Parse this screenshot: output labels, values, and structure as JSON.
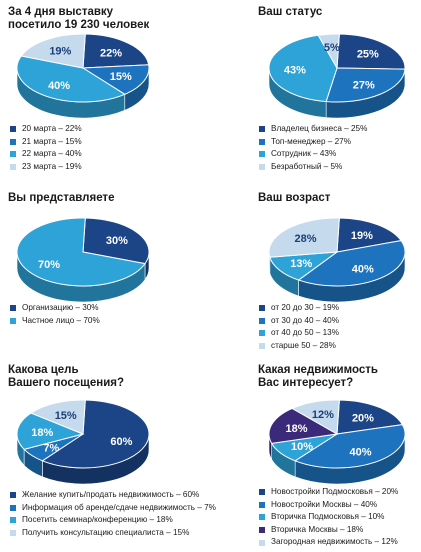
{
  "chart_data": [
    {
      "type": "pie",
      "title": "За 4 дня выставку\nпосетило 19 230 человек",
      "slices": [
        {
          "label": "20 марта – 22%",
          "value": 22,
          "value_label": "22%",
          "color": "#1c4587"
        },
        {
          "label": "21 марта – 15%",
          "value": 15,
          "value_label": "15%",
          "color": "#1e73be"
        },
        {
          "label": "22 марта – 40%",
          "value": 40,
          "value_label": "40%",
          "color": "#2ea3d8"
        },
        {
          "label": "23 марта – 19%",
          "value": 19,
          "value_label": "19%",
          "color": "#c5daec"
        }
      ]
    },
    {
      "type": "pie",
      "title": "Ваш статус",
      "slices": [
        {
          "label": "Владелец бизнеса – 25%",
          "value": 25,
          "value_label": "25%",
          "color": "#1c4587"
        },
        {
          "label": "Топ-менеджер – 27%",
          "value": 27,
          "value_label": "27%",
          "color": "#1e73be"
        },
        {
          "label": "Сотрудник – 43%",
          "value": 43,
          "value_label": "43%",
          "color": "#2ea3d8"
        },
        {
          "label": "Безработный – 5%",
          "value": 5,
          "value_label": "5%",
          "color": "#c5daec"
        }
      ]
    },
    {
      "type": "pie",
      "title": "Вы представляете",
      "slices": [
        {
          "label": "Организацию – 30%",
          "value": 30,
          "value_label": "30%",
          "color": "#1c4587"
        },
        {
          "label": "Частное лицо – 70%",
          "value": 70,
          "value_label": "70%",
          "color": "#2ea3d8"
        }
      ]
    },
    {
      "type": "pie",
      "title": "Ваш возраст",
      "slices": [
        {
          "label": "от 20 до 30 – 19%",
          "value": 19,
          "value_label": "19%",
          "color": "#1c4587"
        },
        {
          "label": "от 30 до 40 – 40%",
          "value": 40,
          "value_label": "40%",
          "color": "#1e73be"
        },
        {
          "label": "от 40 до 50 – 13%",
          "value": 13,
          "value_label": "13%",
          "color": "#2ea3d8"
        },
        {
          "label": "старше 50 – 28%",
          "value": 28,
          "value_label": "28%",
          "color": "#c5daec"
        }
      ]
    },
    {
      "type": "pie",
      "title": "Какова цель\nВашего посещения?",
      "slices": [
        {
          "label": "Желание купить/продать недвижимость – 60%",
          "value": 60,
          "value_label": "60%",
          "color": "#1c4587"
        },
        {
          "label": "Информация об аренде/сдаче недвижимость – 7%",
          "value": 7,
          "value_label": "7%",
          "color": "#1e73be"
        },
        {
          "label": "Посетить семинар/конференцию – 18%",
          "value": 18,
          "value_label": "18%",
          "color": "#2ea3d8"
        },
        {
          "label": "Получить консультацию специалиста – 15%",
          "value": 15,
          "value_label": "15%",
          "color": "#c5daec"
        }
      ]
    },
    {
      "type": "pie",
      "title": "Какая недвижимость\nВас интересует?",
      "slices": [
        {
          "label": "Новостройки Подмосковья  – 20%",
          "value": 20,
          "value_label": "20%",
          "color": "#1c4587"
        },
        {
          "label": "Новостройки Москвы – 40%",
          "value": 40,
          "value_label": "40%",
          "color": "#1e73be"
        },
        {
          "label": "Вторичка Подмосковья – 10%",
          "value": 10,
          "value_label": "10%",
          "color": "#2ea3d8"
        },
        {
          "label": "Вторичка Москвы – 18%",
          "value": 18,
          "value_label": "18%",
          "color": "#3b2a7a"
        },
        {
          "label": "Загородная недвижимость – 12%",
          "value": 12,
          "value_label": "12%",
          "color": "#c5daec"
        }
      ]
    }
  ]
}
